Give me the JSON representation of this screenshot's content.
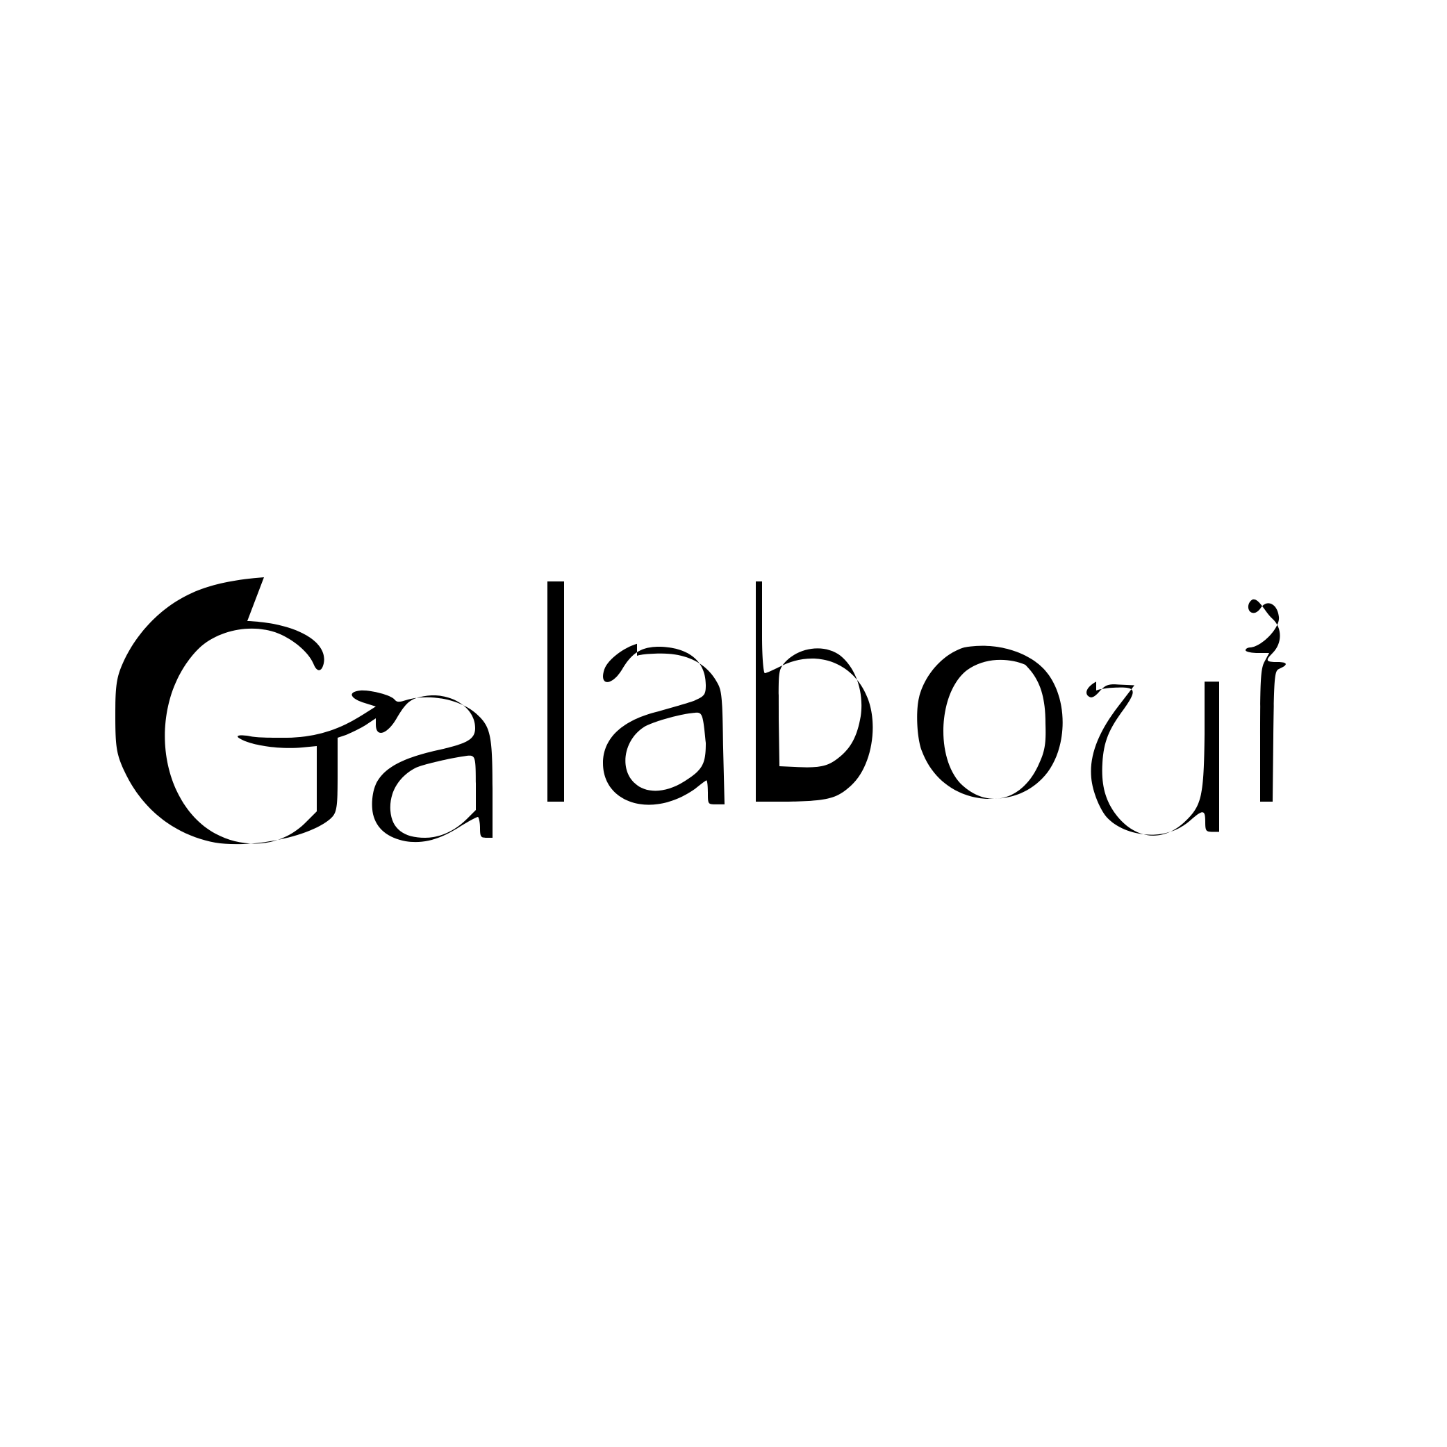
{
  "logo": {
    "wordmark": "Galaboui",
    "ink_color": "#000000",
    "background_color": "#ffffff"
  }
}
